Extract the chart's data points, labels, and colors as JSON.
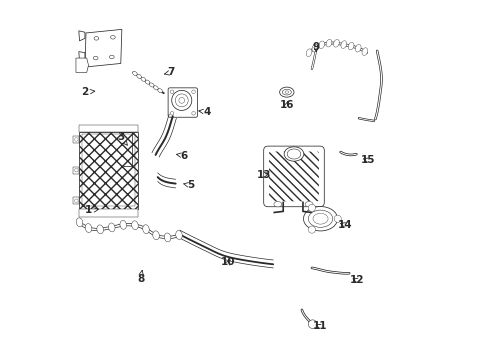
{
  "background_color": "#ffffff",
  "line_color": "#2a2a2a",
  "fig_width": 4.89,
  "fig_height": 3.6,
  "dpi": 100,
  "label_fontsize": 7.5,
  "labels": {
    "1": [
      0.065,
      0.415,
      0.095,
      0.418,
      "left"
    ],
    "2": [
      0.055,
      0.745,
      0.085,
      0.748,
      "left"
    ],
    "3": [
      0.155,
      0.62,
      0.175,
      0.595,
      "left"
    ],
    "4": [
      0.395,
      0.69,
      0.37,
      0.693,
      "right"
    ],
    "5": [
      0.35,
      0.485,
      0.328,
      0.49,
      "right"
    ],
    "6": [
      0.33,
      0.568,
      0.308,
      0.572,
      "right"
    ],
    "7": [
      0.295,
      0.8,
      0.275,
      0.795,
      "left"
    ],
    "8": [
      0.21,
      0.225,
      0.215,
      0.25,
      "center"
    ],
    "9": [
      0.7,
      0.87,
      0.7,
      0.855,
      "center"
    ],
    "10": [
      0.455,
      0.27,
      0.465,
      0.285,
      "center"
    ],
    "11": [
      0.71,
      0.092,
      0.69,
      0.1,
      "right"
    ],
    "12": [
      0.815,
      0.22,
      0.793,
      0.228,
      "right"
    ],
    "13": [
      0.555,
      0.515,
      0.578,
      0.52,
      "right"
    ],
    "14": [
      0.78,
      0.375,
      0.758,
      0.382,
      "right"
    ],
    "15": [
      0.845,
      0.555,
      0.822,
      0.562,
      "right"
    ],
    "16": [
      0.618,
      0.71,
      0.623,
      0.728,
      "center"
    ]
  }
}
